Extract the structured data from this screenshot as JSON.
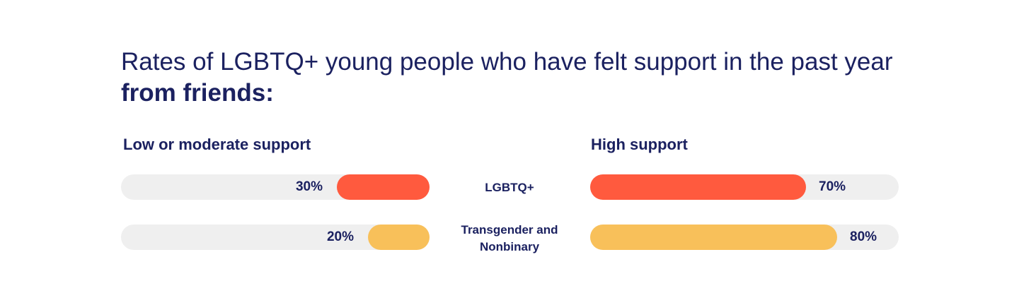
{
  "title": {
    "prefix": "Rates of LGBTQ+ young people who have felt support in the past year ",
    "emphasis": "from friends:"
  },
  "chart_data": {
    "type": "bar",
    "title": "Rates of LGBTQ+ young people who have felt support in the past year from friends:",
    "categories": [
      "LGBTQ+",
      "Transgender and Nonbinary"
    ],
    "series": [
      {
        "name": "Low or moderate support",
        "values": [
          30,
          20
        ]
      },
      {
        "name": "High support",
        "values": [
          70,
          80
        ]
      }
    ],
    "unit": "%",
    "ylim": [
      0,
      100
    ],
    "colors": {
      "LGBTQ+": "#ff5a3e",
      "Transgender and Nonbinary": "#f8c05a",
      "track": "#efefef"
    }
  },
  "labels": {
    "low_heading": "Low or moderate support",
    "high_heading": "High support",
    "categories": [
      "LGBTQ+",
      "Transgender and Nonbinary"
    ],
    "low_values": [
      "30%",
      "20%"
    ],
    "high_values": [
      "70%",
      "80%"
    ]
  }
}
